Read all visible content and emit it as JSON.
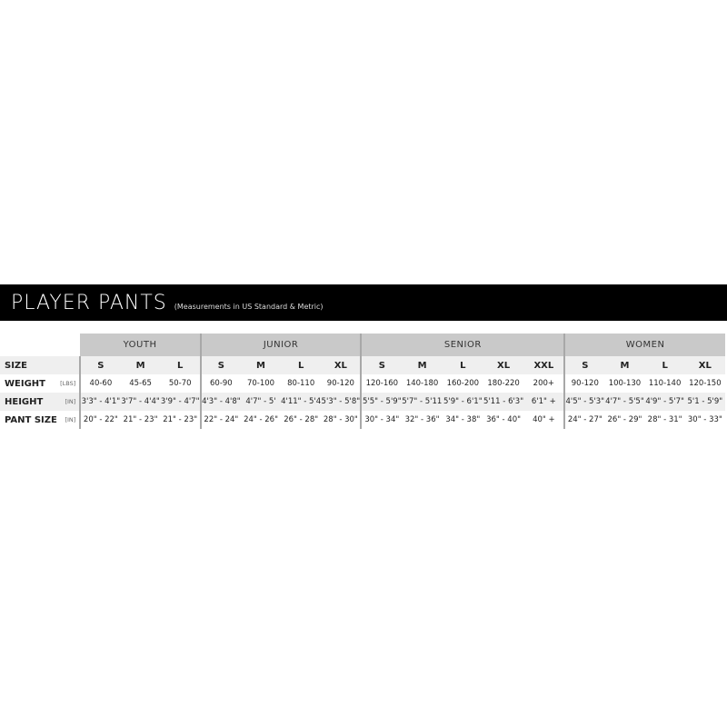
{
  "title": "PLAYER PANTS",
  "subtitle": "(Measurements in US Standard & Metric)",
  "groups": [
    "YOUTH",
    "JUNIOR",
    "SENIOR",
    "WOMEN"
  ],
  "rows": {
    "size": {
      "label": "SIZE",
      "values": [
        "S",
        "M",
        "L",
        "S",
        "M",
        "L",
        "XL",
        "S",
        "M",
        "L",
        "XL",
        "XXL",
        "S",
        "M",
        "L",
        "XL"
      ]
    },
    "weight": {
      "label": "WEIGHT",
      "unit": "[LBS]",
      "values": [
        "40-60",
        "45-65",
        "50-70",
        "60-90",
        "70-100",
        "80-110",
        "90-120",
        "120-160",
        "140-180",
        "160-200",
        "180-220",
        "200+",
        "90-120",
        "100-130",
        "110-140",
        "120-150"
      ]
    },
    "height": {
      "label": "HEIGHT",
      "unit": "[IN]",
      "values": [
        "3'3\" - 4'1\"",
        "3'7\" - 4'4\"",
        "3'9\" - 4'7\"",
        "4'3\" - 4'8\"",
        "4'7\" - 5'",
        "4'11\" - 5'4\"",
        "5'3\" - 5'8\"",
        "5'5\" - 5'9\"",
        "5'7\" - 5'11\"",
        "5'9\" - 6'1\"",
        "5'11 - 6'3\"",
        "6'1\" +",
        "4'5\" - 5'3\"",
        "4'7\" - 5'5\"",
        "4'9\" - 5'7\"",
        "5'1 - 5'9\""
      ]
    },
    "pant": {
      "label": "PANT SIZE",
      "unit": "[IN]",
      "values": [
        "20\" - 22\"",
        "21\" - 23\"",
        "21\" - 23\"",
        "22\" - 24\"",
        "24\" - 26\"",
        "26\" - 28\"",
        "28\" - 30\"",
        "30\" - 34\"",
        "32\" - 36\"",
        "34\" - 38\"",
        "36\" - 40\"",
        "40\" +",
        "24\" - 27\"",
        "26\" - 29\"",
        "28\" - 31\"",
        "30\" - 33\""
      ]
    }
  }
}
